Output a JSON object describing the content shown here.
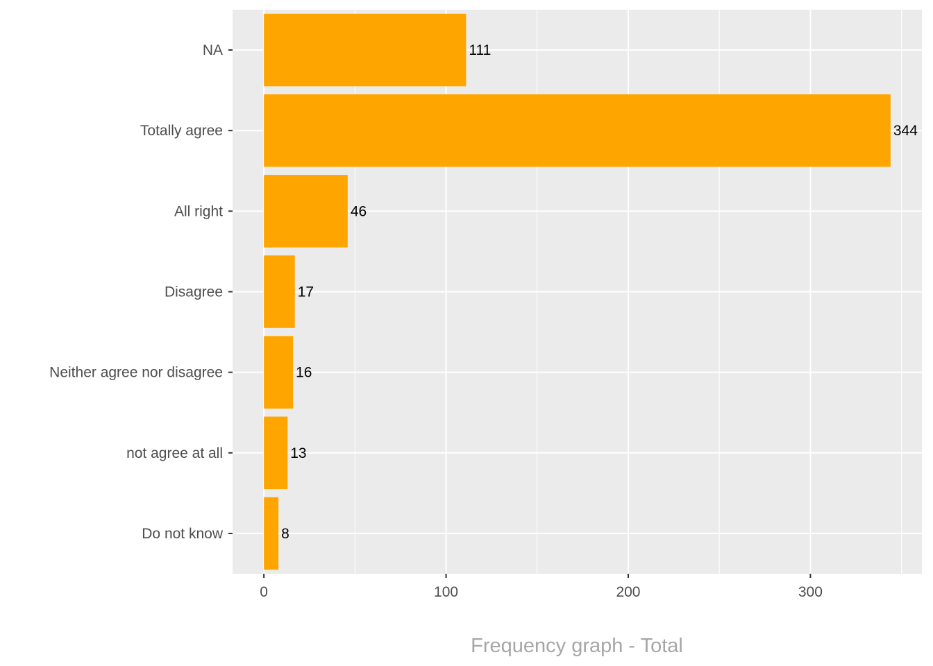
{
  "chart_data": {
    "type": "bar",
    "orientation": "horizontal",
    "categories": [
      "NA",
      "Totally agree",
      "All right",
      "Disagree",
      "Neither agree nor disagree",
      "not agree at all",
      "Do not know"
    ],
    "values": [
      111,
      344,
      46,
      17,
      16,
      13,
      8
    ],
    "data_labels": [
      "111",
      "344",
      "46",
      "17",
      "16",
      "13",
      "8"
    ],
    "title": "",
    "xlabel": "Frequency graph - Total",
    "ylabel": "",
    "xlim": [
      -17.2,
      361.2
    ],
    "x_ticks": [
      0,
      100,
      200,
      300
    ],
    "x_tick_labels": [
      "0",
      "100",
      "200",
      "300"
    ],
    "grid": true,
    "legend": "none",
    "colors": {
      "bar": "#FFA500",
      "panel": "#EBEBEB",
      "grid": "#FFFFFF",
      "axis_text": "#4D4D4D",
      "data_label_text": "#000000",
      "axis_title_text": "#A6A6A6"
    }
  }
}
